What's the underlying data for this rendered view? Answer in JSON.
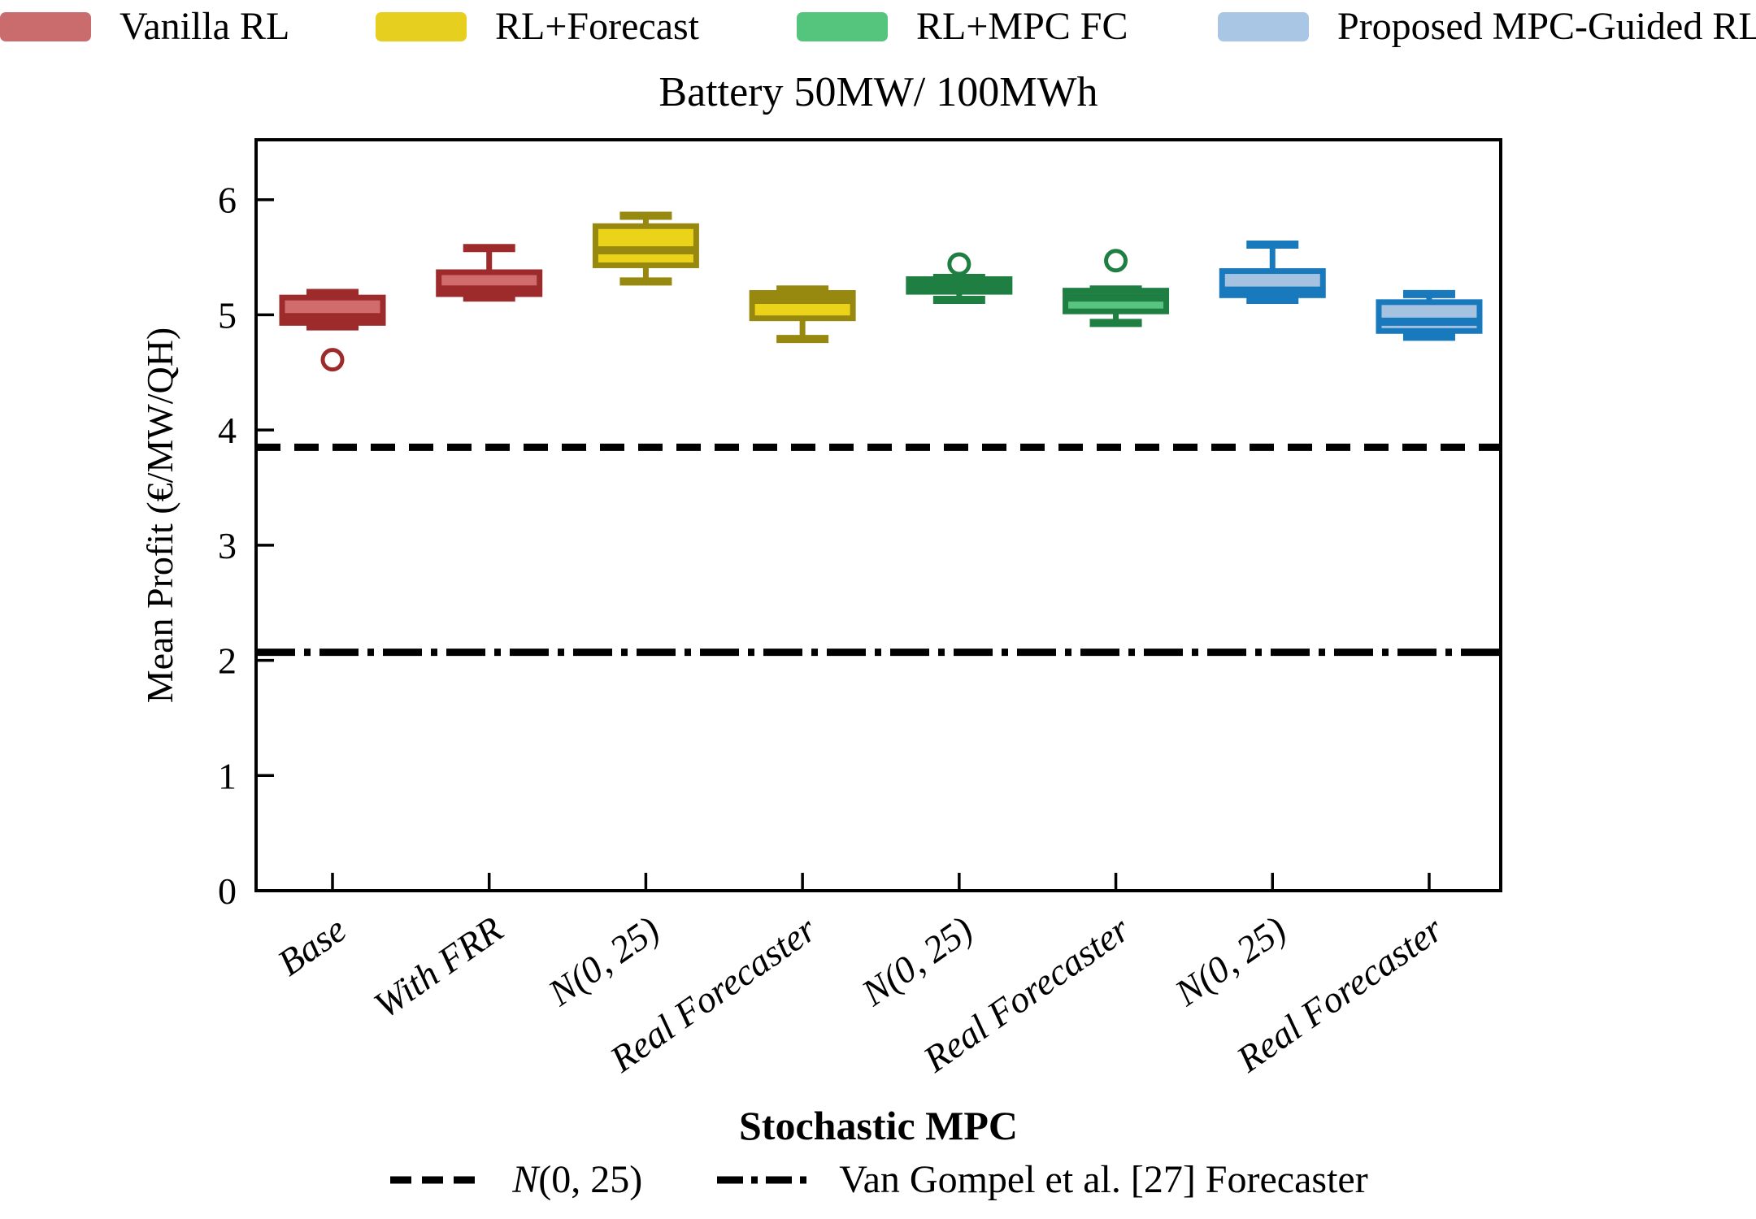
{
  "title": "Battery 50MW/ 100MWh",
  "legend_top": {
    "items": [
      {
        "label": "Vanilla RL",
        "color": "#CA6B6E"
      },
      {
        "label": "RL+Forecast",
        "color": "#E6CF1F"
      },
      {
        "label": "RL+MPC FC",
        "color": "#55C57D"
      },
      {
        "label": "Proposed MPC-Guided RL",
        "color": "#A9C6E4"
      }
    ]
  },
  "chart_data": {
    "type": "box",
    "title": "Battery 50MW/ 100MWh",
    "xlabel": "Stochastic MPC",
    "ylabel": "Mean Profit (€/MW/QH)",
    "ylim": [
      0,
      6.52
    ],
    "yticks": [
      0,
      1,
      2,
      3,
      4,
      5,
      6
    ],
    "grid": false,
    "legend_position": "top",
    "categories": [
      "Base",
      "With FRR",
      "𝒩(0, 25)",
      "Real Forecaster",
      "𝒩(0, 25)",
      "Real Forecaster",
      "𝒩(0, 25)",
      "Real Forecaster"
    ],
    "boxes": [
      {
        "category": "Base",
        "series": "Vanilla RL",
        "fill": "#D16C6C",
        "edge": "#9E2B2B",
        "whislo": 4.9,
        "q1": 4.93,
        "med": 4.98,
        "q3": 5.15,
        "whishi": 5.19,
        "fliers": [
          4.61
        ]
      },
      {
        "category": "With FRR",
        "series": "Vanilla RL",
        "fill": "#D16C6C",
        "edge": "#9E2B2B",
        "whislo": 5.15,
        "q1": 5.18,
        "med": 5.22,
        "q3": 5.37,
        "whishi": 5.58,
        "fliers": []
      },
      {
        "category": "𝒩(0, 25)",
        "series": "RL+Forecast",
        "fill": "#EBD31A",
        "edge": "#97880F",
        "whislo": 5.29,
        "q1": 5.43,
        "med": 5.56,
        "q3": 5.77,
        "whishi": 5.86,
        "fliers": []
      },
      {
        "category": "Real Forecaster",
        "series": "RL+Forecast",
        "fill": "#EBD31A",
        "edge": "#97880F",
        "whislo": 4.79,
        "q1": 4.97,
        "med": 5.13,
        "q3": 5.19,
        "whishi": 5.22,
        "fliers": []
      },
      {
        "category": "𝒩(0, 25)",
        "series": "RL+MPC FC",
        "fill": "#57C57F",
        "edge": "#1F7E41",
        "whislo": 5.13,
        "q1": 5.2,
        "med": 5.25,
        "q3": 5.31,
        "whishi": 5.32,
        "fliers": [
          5.44
        ]
      },
      {
        "category": "Real Forecaster",
        "series": "RL+MPC FC",
        "fill": "#57C57F",
        "edge": "#1F7E41",
        "whislo": 4.93,
        "q1": 5.03,
        "med": 5.15,
        "q3": 5.21,
        "whishi": 5.22,
        "fliers": [
          5.47
        ]
      },
      {
        "category": "𝒩(0, 25)",
        "series": "Proposed MPC-Guided RL",
        "fill": "#A5C2E1",
        "edge": "#1879BD",
        "whislo": 5.13,
        "q1": 5.17,
        "med": 5.21,
        "q3": 5.38,
        "whishi": 5.61,
        "fliers": []
      },
      {
        "category": "Real Forecaster",
        "series": "Proposed MPC-Guided RL",
        "fill": "#A5C2E1",
        "edge": "#1879BD",
        "whislo": 4.81,
        "q1": 4.86,
        "med": 4.94,
        "q3": 5.11,
        "whishi": 5.18,
        "fliers": []
      }
    ],
    "ref_lines": [
      {
        "label": "𝒩(0, 25)",
        "value": 3.85,
        "style": "dashed",
        "color": "#000000"
      },
      {
        "label": "Van Gompel et al. [27] Forecaster",
        "value": 2.07,
        "style": "dashdot",
        "color": "#000000"
      }
    ]
  },
  "legend_bottom": {
    "title": "Stochastic MPC",
    "items": [
      {
        "label": "𝒩(0, 25)",
        "style": "dashed"
      },
      {
        "label": "Van Gompel et al. [27] Forecaster",
        "style": "dashdot"
      }
    ]
  }
}
